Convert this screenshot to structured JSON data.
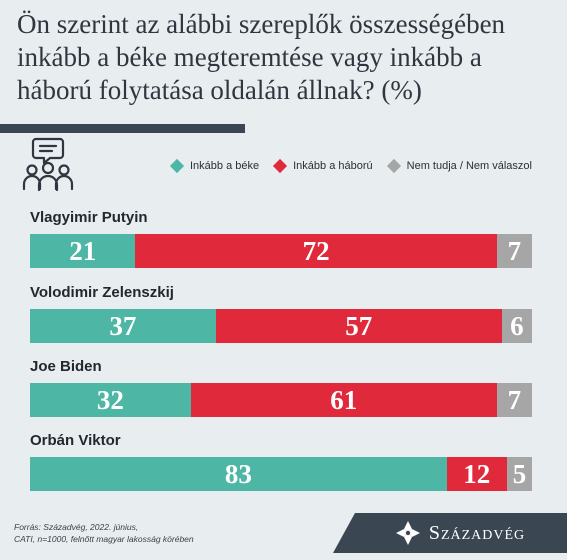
{
  "header": {
    "title": "Ön szerint az alábbi szereplők összességében inkább a béke megteremtése vagy inkább a háború folytatása oldalán állnak? (%)"
  },
  "icons": {
    "header_icon": "people-discussion-icon",
    "brand_icon": "diamond-ornament-icon"
  },
  "colors": {
    "peace": "#4db6a5",
    "war": "#e0293a",
    "unknown": "#a6a6a6",
    "dark": "#3a4652"
  },
  "footer": {
    "source_line1": "Forrás: Századvég, 2022. június,",
    "source_line2": "CATI, n=1000, felnőtt magyar lakosság körében",
    "brand": "Századvég"
  },
  "chart_data": {
    "type": "bar",
    "orientation": "horizontal-stacked-100",
    "title": "Ön szerint az alábbi szereplők összességében inkább a béke megteremtése vagy inkább a háború folytatása oldalán állnak? (%)",
    "categories": [
      "Vlagyimir Putyin",
      "Volodimir Zelenszkij",
      "Joe Biden",
      "Orbán Viktor"
    ],
    "series": [
      {
        "name": "Inkább a béke",
        "color": "#4db6a5",
        "values": [
          21,
          37,
          32,
          83
        ]
      },
      {
        "name": "Inkább a háború",
        "color": "#e0293a",
        "values": [
          72,
          57,
          61,
          12
        ]
      },
      {
        "name": "Nem tudja / Nem válaszol",
        "color": "#a6a6a6",
        "values": [
          7,
          6,
          7,
          5
        ]
      }
    ],
    "xlim": [
      0,
      100
    ],
    "grid": false,
    "legend": "top"
  }
}
